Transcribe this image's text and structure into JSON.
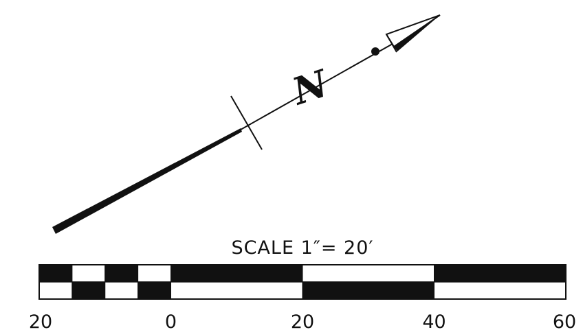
{
  "north_arrow": {
    "letter": "N"
  },
  "scale_bar": {
    "title": "SCALE 1″= 20′",
    "unit": "ft",
    "range": [
      -20,
      60
    ],
    "tick_values": [
      -20,
      0,
      20,
      40,
      60
    ],
    "tick_labels": [
      "20",
      "0",
      "20",
      "40",
      "60"
    ],
    "subdivision_left": 5,
    "colors": {
      "ink": "#111111",
      "paper": "#ffffff"
    }
  }
}
